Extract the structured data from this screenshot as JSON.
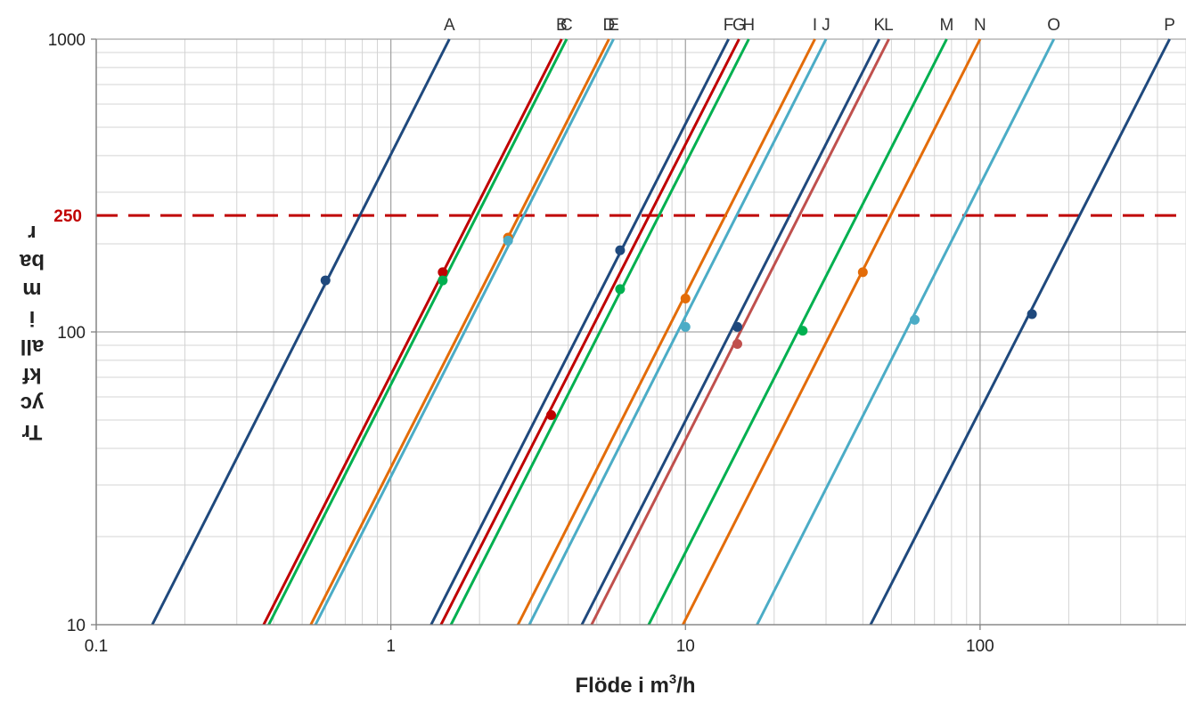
{
  "chart_data": {
    "type": "line",
    "title": "",
    "xlabel": "Flöde i m",
    "xlabel_sup": "3",
    "xlabel_suffix": "/h",
    "ylabel_lines": [
      "Tr",
      "yc",
      "kf",
      "all",
      "i",
      "m",
      "ba",
      "r"
    ],
    "x_scale": "log",
    "y_scale": "log",
    "xlim": [
      0.1,
      500
    ],
    "ylim": [
      10,
      1000
    ],
    "x_ticks": [
      0.1,
      1,
      10,
      100
    ],
    "x_tick_labels": [
      "0.1",
      "1",
      "10",
      "100"
    ],
    "y_ticks": [
      10,
      100,
      1000
    ],
    "y_tick_labels": [
      "10",
      "100",
      "1000"
    ],
    "grid": true,
    "legend": "none",
    "reference_line": {
      "y": 250,
      "label": "250",
      "color": "#c00000",
      "style": "dashed"
    },
    "series": [
      {
        "name": "A",
        "color": "#1f497d",
        "x": [
          0.155,
          1.58
        ],
        "y": [
          10,
          1000
        ],
        "marker": [
          0.6,
          150
        ]
      },
      {
        "name": "B",
        "color": "#c00000",
        "x": [
          0.37,
          3.8
        ],
        "y": [
          10,
          1000
        ],
        "marker": [
          1.5,
          160
        ]
      },
      {
        "name": "C",
        "color": "#00b050",
        "x": [
          0.385,
          3.95
        ],
        "y": [
          10,
          1000
        ],
        "marker": [
          1.5,
          150
        ]
      },
      {
        "name": "D",
        "color": "#e36c09",
        "x": [
          0.535,
          5.5
        ],
        "y": [
          10,
          1000
        ],
        "marker": [
          2.5,
          210
        ]
      },
      {
        "name": "E",
        "color": "#4bacc6",
        "x": [
          0.555,
          5.7
        ],
        "y": [
          10,
          1000
        ],
        "marker": [
          2.5,
          205
        ]
      },
      {
        "name": "F",
        "color": "#1f497d",
        "x": [
          1.37,
          14.0
        ],
        "y": [
          10,
          1000
        ],
        "marker": [
          6,
          190
        ]
      },
      {
        "name": "G",
        "color": "#c00000",
        "x": [
          1.48,
          15.2
        ],
        "y": [
          10,
          1000
        ],
        "marker": [
          3.5,
          52
        ]
      },
      {
        "name": "H",
        "color": "#00b050",
        "x": [
          1.6,
          16.4
        ],
        "y": [
          10,
          1000
        ],
        "marker": [
          6,
          140
        ]
      },
      {
        "name": "I",
        "color": "#e36c09",
        "x": [
          2.7,
          27.5
        ],
        "y": [
          10,
          1000
        ],
        "marker": [
          10,
          130
        ]
      },
      {
        "name": "J",
        "color": "#4bacc6",
        "x": [
          2.95,
          30.0
        ],
        "y": [
          10,
          1000
        ],
        "marker": [
          10,
          104
        ]
      },
      {
        "name": "K",
        "color": "#1f497d",
        "x": [
          4.45,
          45.5
        ],
        "y": [
          10,
          1000
        ],
        "marker": [
          15,
          104
        ]
      },
      {
        "name": "L",
        "color": "#c0504d",
        "x": [
          4.8,
          49.0
        ],
        "y": [
          10,
          1000
        ],
        "marker": [
          15,
          91
        ]
      },
      {
        "name": "M",
        "color": "#00b050",
        "x": [
          7.5,
          77.0
        ],
        "y": [
          10,
          1000
        ],
        "marker": [
          25,
          101
        ]
      },
      {
        "name": "N",
        "color": "#e36c09",
        "x": [
          9.8,
          100.0
        ],
        "y": [
          10,
          1000
        ],
        "marker": [
          40,
          160
        ]
      },
      {
        "name": "O",
        "color": "#4bacc6",
        "x": [
          17.5,
          178.0
        ],
        "y": [
          10,
          1000
        ],
        "marker": [
          60,
          110
        ]
      },
      {
        "name": "P",
        "color": "#1f497d",
        "x": [
          42.5,
          440.0
        ],
        "y": [
          10,
          1000
        ],
        "marker": [
          150,
          115
        ]
      }
    ]
  }
}
